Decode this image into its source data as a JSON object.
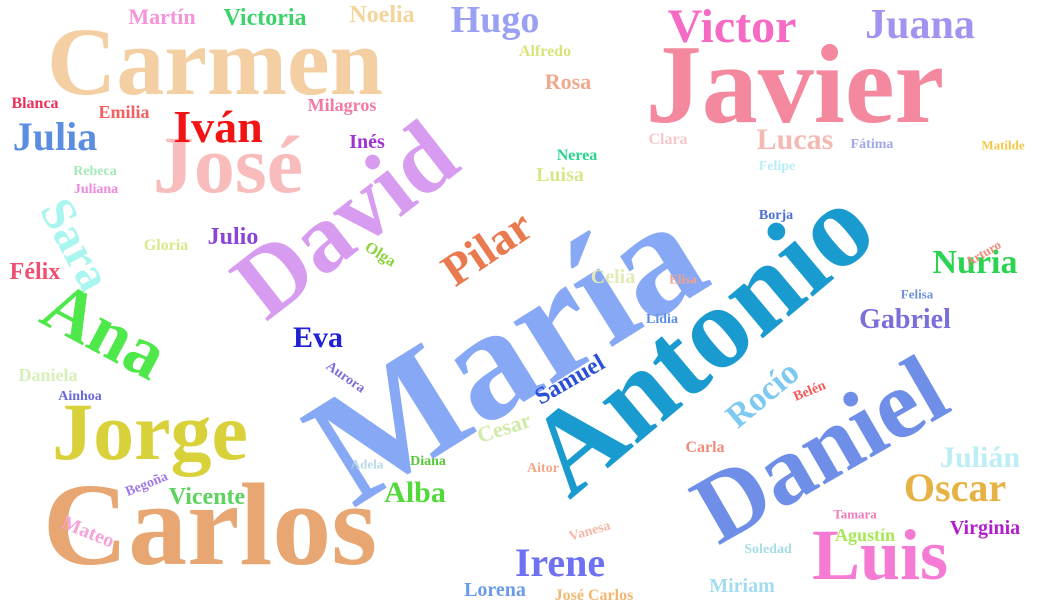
{
  "words": [
    {
      "text": "María",
      "color": "#87a9f5"
    },
    {
      "text": "Antonio",
      "color": "#1a9bcf"
    },
    {
      "text": "Carlos",
      "color": "#e8a772"
    },
    {
      "text": "Javier",
      "color": "#f4889e"
    },
    {
      "text": "Daniel",
      "color": "#6f8ee8"
    },
    {
      "text": "David",
      "color": "#d79cef"
    },
    {
      "text": "Carmen",
      "color": "#f5cfa4"
    },
    {
      "text": "José",
      "color": "#f9bcbc"
    },
    {
      "text": "Jorge",
      "color": "#d9d13a"
    },
    {
      "text": "Luis",
      "color": "#f57ad3"
    },
    {
      "text": "Ana",
      "color": "#4ee84a"
    },
    {
      "text": "Pilar",
      "color": "#e9794f"
    },
    {
      "text": "Victor",
      "color": "#f56bc4"
    },
    {
      "text": "Sara",
      "color": "#a9f5ef"
    },
    {
      "text": "Iván",
      "color": "#f21414"
    },
    {
      "text": "Juana",
      "color": "#a392f0"
    },
    {
      "text": "Hugo",
      "color": "#9aa0f2"
    },
    {
      "text": "Julia",
      "color": "#5b8ee0"
    },
    {
      "text": "Oscar",
      "color": "#e6b243"
    },
    {
      "text": "Irene",
      "color": "#6e72f2"
    },
    {
      "text": "Rocío",
      "color": "#7dc9ef"
    },
    {
      "text": "Nuria",
      "color": "#2bd450"
    },
    {
      "text": "Gabriel",
      "color": "#7a6ed9"
    },
    {
      "text": "Julián",
      "color": "#bdeef5"
    },
    {
      "text": "Alba",
      "color": "#52d939"
    },
    {
      "text": "Lucas",
      "color": "#f5b9b3"
    },
    {
      "text": "Eva",
      "color": "#2020d6"
    },
    {
      "text": "Julio",
      "color": "#8b45d8"
    },
    {
      "text": "Samuel",
      "color": "#2a4fd8"
    },
    {
      "text": "Victoria",
      "color": "#3cd46a"
    },
    {
      "text": "Noelia",
      "color": "#f5d49a"
    },
    {
      "text": "Martín",
      "color": "#f594d8"
    },
    {
      "text": "Vicente",
      "color": "#5ed35f"
    },
    {
      "text": "Virginia",
      "color": "#b020c8"
    },
    {
      "text": "Félix",
      "color": "#f05070"
    },
    {
      "text": "Luisa",
      "color": "#d7e88a"
    },
    {
      "text": "Rosa",
      "color": "#f2a88e"
    },
    {
      "text": "Inés",
      "color": "#a033d0"
    },
    {
      "text": "Emilia",
      "color": "#f26060"
    },
    {
      "text": "Milagros",
      "color": "#f27aa0"
    },
    {
      "text": "Blanca",
      "color": "#e8305a"
    },
    {
      "text": "Alfredo",
      "color": "#d9e37a"
    },
    {
      "text": "Mateo",
      "color": "#f5a3d8"
    },
    {
      "text": "Lorena",
      "color": "#6a9be8"
    },
    {
      "text": "Miriam",
      "color": "#a3dcef"
    },
    {
      "text": "Daniela",
      "color": "#d5f0b8"
    },
    {
      "text": "Cesar",
      "color": "#d0eaa8"
    },
    {
      "text": "Agustín",
      "color": "#a7e854"
    },
    {
      "text": "Celia",
      "color": "#e3eab5"
    },
    {
      "text": "Nerea",
      "color": "#2ad68e"
    },
    {
      "text": "Gloria",
      "color": "#d9e88a"
    },
    {
      "text": "Olga",
      "color": "#88d43a"
    },
    {
      "text": "Aurora",
      "color": "#7a6ed9"
    },
    {
      "text": "Rebeca",
      "color": "#a5e8b8"
    },
    {
      "text": "Juliana",
      "color": "#ee8adc"
    },
    {
      "text": "Carla",
      "color": "#f08a7a"
    },
    {
      "text": "Belén",
      "color": "#f25a5a"
    },
    {
      "text": "Clara",
      "color": "#f5c9cc"
    },
    {
      "text": "Fátima",
      "color": "#a0a8e8"
    },
    {
      "text": "Matilde",
      "color": "#f5c84a"
    },
    {
      "text": "Felipe",
      "color": "#b8eef5"
    },
    {
      "text": "Borja",
      "color": "#4a6ed8"
    },
    {
      "text": "Arturo",
      "color": "#f58878"
    },
    {
      "text": "Felisa",
      "color": "#6e92d8"
    },
    {
      "text": "Elisa",
      "color": "#f5a088"
    },
    {
      "text": "Lidia",
      "color": "#5a8ee8"
    },
    {
      "text": "Aitor",
      "color": "#f5a888"
    },
    {
      "text": "Diana",
      "color": "#58c838"
    },
    {
      "text": "Adela",
      "color": "#b8d8e8"
    },
    {
      "text": "Vanesa",
      "color": "#f5b8a8"
    },
    {
      "text": "Tamara",
      "color": "#f07ab8"
    },
    {
      "text": "Soledad",
      "color": "#a8dce8"
    },
    {
      "text": "Begoña",
      "color": "#a07ae8"
    },
    {
      "text": "Ainhoa",
      "color": "#6a6ad8"
    },
    {
      "text": "José Carlos",
      "color": "#f0b870"
    }
  ]
}
